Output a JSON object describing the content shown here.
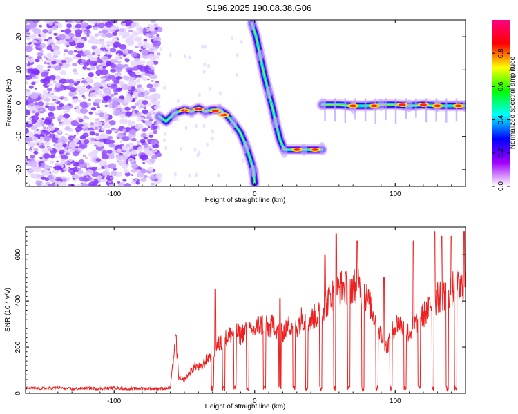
{
  "figure": {
    "title": "S196.2025.190.08.38.G06"
  },
  "chart_data": [
    {
      "type": "heatmap",
      "xlabel": "Height of straight line (km)",
      "ylabel": "Frequency (Hz)",
      "xlim": [
        -163,
        150
      ],
      "ylim": [
        -25,
        25
      ],
      "xticks": [
        -100,
        0,
        100
      ],
      "xtick_labels": [
        "-100",
        "0",
        "100"
      ],
      "yticks": [
        -20,
        -10,
        0,
        10,
        20
      ],
      "ytick_labels": [
        "-20",
        "-10",
        "0",
        "10",
        "20"
      ],
      "grid": false,
      "colorbar": {
        "label": "Normalized spectral amplitude",
        "range": [
          0.0,
          1.0
        ],
        "ticks": [
          0.0,
          0.2,
          0.4,
          0.6,
          0.8
        ],
        "tick_labels": [
          "0.0",
          "0.2",
          "0.4",
          "0.6",
          "0.8"
        ],
        "colormap": [
          "#ffffff",
          "#a000ff",
          "#0000ff",
          "#00ffff",
          "#00ff00",
          "#ffff00",
          "#ff0000",
          "#ff0080"
        ]
      },
      "noise_region": {
        "x": [
          -163,
          -68
        ],
        "y": [
          -25,
          25
        ]
      },
      "ridges": [
        {
          "points": [
            [
              -68,
              -4
            ],
            [
              -63,
              -5.5
            ],
            [
              -57,
              -3
            ],
            [
              -50,
              -2
            ],
            [
              -45,
              -2.5
            ],
            [
              -40,
              -1.5
            ],
            [
              -35,
              -2.5
            ],
            [
              -30,
              -2
            ],
            [
              -25,
              -2
            ],
            [
              -20,
              -3.5
            ],
            [
              -15,
              -6
            ],
            [
              -10,
              -9
            ],
            [
              -6,
              -13
            ],
            [
              -3,
              -17
            ],
            [
              -1,
              -20
            ],
            [
              0,
              -24
            ]
          ]
        },
        {
          "points": [
            [
              -2,
              24
            ],
            [
              1,
              20
            ],
            [
              4,
              14
            ],
            [
              7,
              8
            ],
            [
              10,
              3
            ],
            [
              13,
              -2
            ],
            [
              15,
              -6
            ],
            [
              18,
              -11
            ],
            [
              21,
              -14
            ],
            [
              28,
              -14
            ],
            [
              35,
              -14
            ],
            [
              42,
              -14
            ],
            [
              48,
              -14
            ]
          ]
        },
        {
          "points": [
            [
              48,
              -0.5
            ],
            [
              60,
              -0.5
            ],
            [
              70,
              -0.8
            ],
            [
              80,
              -0.8
            ],
            [
              90,
              -0.5
            ],
            [
              100,
              -0.5
            ],
            [
              110,
              -0.8
            ],
            [
              120,
              -0.5
            ],
            [
              130,
              -0.8
            ],
            [
              140,
              -0.8
            ],
            [
              150,
              -0.8
            ]
          ]
        }
      ],
      "hot_spots": [
        [
          -50,
          -2.2
        ],
        [
          -40,
          -1.8
        ],
        [
          -28,
          -2.3
        ],
        [
          -22,
          -3.5
        ],
        [
          30,
          -14
        ],
        [
          43,
          -14
        ],
        [
          70,
          -0.8
        ],
        [
          85,
          -0.8
        ],
        [
          105,
          -0.5
        ],
        [
          120,
          -0.5
        ],
        [
          130,
          -0.8
        ],
        [
          145,
          -0.8
        ]
      ]
    },
    {
      "type": "line",
      "xlabel": "Height of straight line (km)",
      "ylabel": "SNR (10 * v/v)",
      "xlim": [
        -163,
        150
      ],
      "ylim": [
        0,
        720
      ],
      "xticks": [
        -100,
        0,
        100
      ],
      "xtick_labels": [
        "-100",
        "0",
        "100"
      ],
      "yticks": [
        0,
        200,
        400,
        600
      ],
      "ytick_labels": [
        "0",
        "200",
        "400",
        "600"
      ],
      "grid": false,
      "series": [
        {
          "color": "#ee2222",
          "x": [
            -163,
            -150,
            -140,
            -130,
            -120,
            -110,
            -100,
            -90,
            -80,
            -70,
            -60,
            -56,
            -55,
            -54,
            -52,
            -50,
            -46,
            -42,
            -38,
            -34,
            -30,
            -26,
            -22,
            -18,
            -14,
            -10,
            -6,
            -2,
            2,
            6,
            10,
            14,
            18,
            22,
            26,
            30,
            34,
            38,
            42,
            46,
            50,
            54,
            58,
            62,
            66,
            70,
            74,
            78,
            82,
            86,
            90,
            94,
            98,
            102,
            106,
            110,
            114,
            118,
            122,
            126,
            130,
            134,
            138,
            142,
            146,
            150
          ],
          "y": [
            22,
            20,
            24,
            18,
            22,
            20,
            23,
            19,
            21,
            20,
            22,
            250,
            150,
            70,
            55,
            60,
            90,
            120,
            110,
            150,
            170,
            210,
            230,
            250,
            270,
            250,
            280,
            260,
            290,
            300,
            280,
            300,
            250,
            280,
            300,
            290,
            330,
            310,
            330,
            340,
            380,
            420,
            440,
            460,
            450,
            470,
            460,
            440,
            380,
            320,
            250,
            200,
            270,
            310,
            280,
            260,
            300,
            330,
            350,
            390,
            410,
            430,
            440,
            460,
            450,
            470
          ]
        }
      ],
      "dropout_points": [
        -30,
        -22,
        -14,
        -5,
        7,
        18,
        28,
        37,
        47,
        57,
        67,
        77,
        87,
        97,
        107,
        117,
        127,
        137,
        143
      ],
      "spike_points": [
        [
          -56,
          250
        ],
        [
          -28,
          450
        ],
        [
          18,
          410
        ],
        [
          50,
          600
        ],
        [
          58,
          690
        ],
        [
          73,
          660
        ],
        [
          92,
          500
        ],
        [
          113,
          660
        ],
        [
          128,
          700
        ],
        [
          133,
          680
        ],
        [
          140,
          680
        ],
        [
          149,
          700
        ]
      ]
    }
  ]
}
